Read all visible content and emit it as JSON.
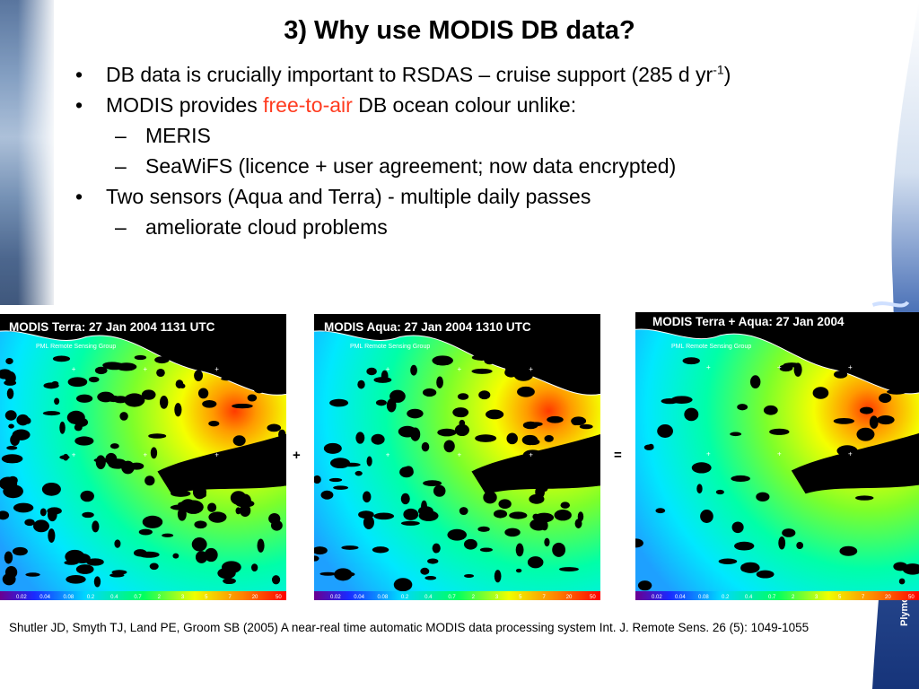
{
  "slide": {
    "title": "3) Why use MODIS DB data?",
    "bullets": [
      {
        "level": 1,
        "marker": "•",
        "text": "DB data is crucially important to RSDAS – cruise support (285 d yr",
        "sup": "-1",
        "tail": ")"
      },
      {
        "level": 1,
        "marker": "•",
        "text_before": "MODIS provides ",
        "highlight": "free-to-air",
        "text_after": " DB ocean colour unlike:"
      },
      {
        "level": 2,
        "marker": "–",
        "text": "MERIS"
      },
      {
        "level": 2,
        "marker": "–",
        "text": "SeaWiFS (licence + user agreement; now data encrypted)"
      },
      {
        "level": 1,
        "marker": "•",
        "text": "Two sensors (Aqua and Terra) - multiple daily passes"
      },
      {
        "level": 2,
        "marker": "–",
        "text": "ameliorate cloud problems"
      }
    ],
    "highlight_color": "#ff3b1f",
    "images": [
      {
        "label": "MODIS Terra: 27 Jan 2004 1131 UTC",
        "group": "PML Remote Sensing Group"
      },
      {
        "label": "MODIS Aqua: 27 Jan 2004 1310 UTC",
        "group": "PML Remote Sensing Group"
      },
      {
        "label": "MODIS Terra + Aqua: 27 Jan 2004",
        "group": "PML Remote Sensing Group"
      }
    ],
    "operators": [
      "+",
      "="
    ],
    "colorbar_ticks": [
      "0.02",
      "0.04",
      "0.08",
      "0.2",
      "0.4",
      "0.7",
      "2",
      "3",
      "5",
      "7",
      "20",
      "50"
    ],
    "citation": "Shutler JD, Smyth TJ, Land PE, Groom SB (2005) A near-real time automatic MODIS data processing system Int. J. Remote Sens. 26 (5): 1049-1055",
    "logo_text": "Plymouth Marine L"
  }
}
